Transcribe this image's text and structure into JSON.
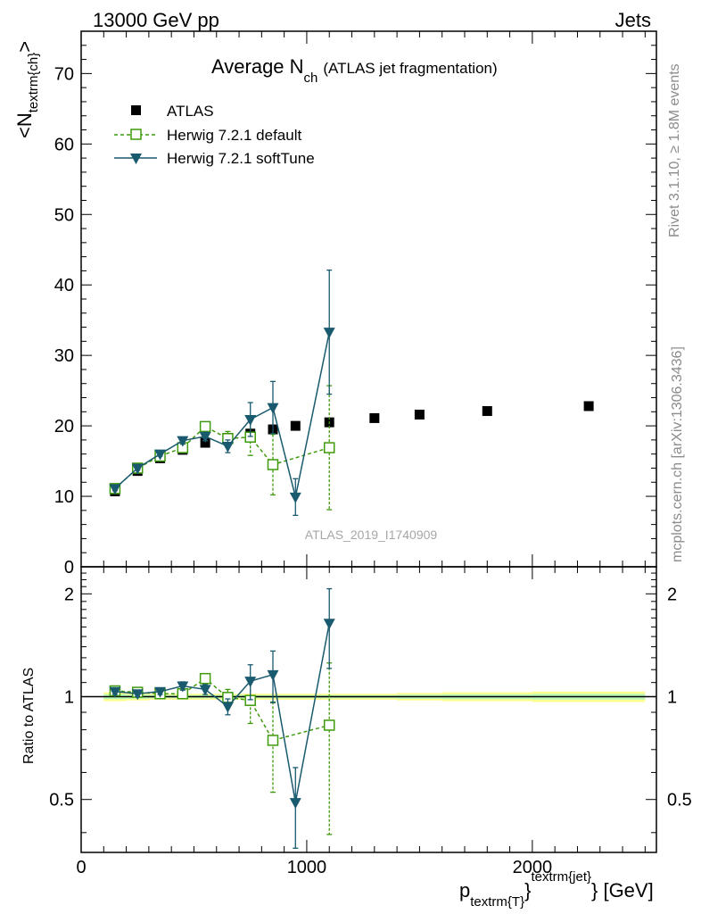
{
  "header": {
    "left": "13000 GeV pp",
    "right": "Jets"
  },
  "side": {
    "rivet": "Rivet 3.1.10, ≥ 1.8M events",
    "mcplots": "mcplots.cern.ch [arXiv:1306.3436]"
  },
  "plot_title": {
    "main": "Average N",
    "sub": "ch",
    "paren": "(ATLAS jet fragmentation)"
  },
  "analysis_id": "ATLAS_2019_I1740909",
  "axes": {
    "y_top_label_main": "<N",
    "y_top_label_sub": "textrm{ch}",
    "y_top_label_end": ">",
    "y_bottom_label": "Ratio to ATLAS",
    "x_label_p": "p",
    "x_label_sub": "textrm{T}",
    "x_label_brace": "}",
    "x_label_sup": "textrm{jet}",
    "x_label_end": "} [GeV]"
  },
  "legend": {
    "atlas": "ATLAS",
    "default": "Herwig 7.2.1 default",
    "softtune": "Herwig 7.2.1 softTune"
  },
  "colors": {
    "atlas": "#000000",
    "default": "#3f9a0b",
    "softtune": "#1a5a6e",
    "band_inner": "#b9f7b9",
    "band_outer": "#fdfd8c"
  },
  "chart_data": {
    "type": "scatter",
    "x_range": [
      0,
      2550
    ],
    "x_ticks": [
      0,
      1000,
      2000
    ],
    "x_tick_labels": [
      "0",
      "1000",
      "2000"
    ],
    "main": {
      "y_range": [
        0,
        76
      ],
      "y_ticks": [
        0,
        10,
        20,
        30,
        40,
        50,
        60,
        70
      ],
      "y_tick_labels": [
        "0",
        "10",
        "20",
        "30",
        "40",
        "50",
        "60",
        "70"
      ]
    },
    "ratio": {
      "y_range": [
        0.35,
        2.4
      ],
      "log": true,
      "y_ticks": [
        0.5,
        1,
        2
      ],
      "y_tick_labels": [
        "0.5",
        "1",
        "2"
      ]
    },
    "atlas": {
      "x": [
        150,
        250,
        350,
        450,
        550,
        650,
        750,
        850,
        950,
        1100,
        1300,
        1500,
        1800,
        2250
      ],
      "xlo": [
        100,
        200,
        300,
        400,
        500,
        600,
        700,
        800,
        900,
        1000,
        1200,
        1400,
        1600,
        2000
      ],
      "xhi": [
        200,
        300,
        400,
        500,
        600,
        700,
        800,
        900,
        1000,
        1200,
        1400,
        1600,
        2000,
        2500
      ],
      "y": [
        10.7,
        13.6,
        15.4,
        16.6,
        17.6,
        18.3,
        18.9,
        19.5,
        20.0,
        20.5,
        21.1,
        21.6,
        22.1,
        22.8
      ],
      "band": [
        0.03,
        0.025,
        0.02,
        0.02,
        0.02,
        0.02,
        0.02,
        0.02,
        0.02,
        0.02,
        0.02,
        0.025,
        0.03,
        0.035
      ]
    },
    "series": [
      {
        "name": "Herwig 7.2.1 default",
        "x": [
          150,
          250,
          350,
          450,
          550,
          650,
          750,
          850,
          1100
        ],
        "y": [
          11.1,
          14.0,
          15.7,
          16.9,
          19.9,
          18.2,
          18.4,
          14.5,
          16.9
        ],
        "err": [
          0.3,
          0.3,
          0.3,
          0.5,
          0.6,
          1.0,
          2.6,
          4.3,
          8.8
        ],
        "ratio": [
          1.04,
          1.03,
          1.02,
          1.02,
          1.13,
          0.995,
          0.975,
          0.745,
          0.825
        ],
        "ratio_err": [
          0.02,
          0.02,
          0.02,
          0.03,
          0.03,
          0.055,
          0.14,
          0.22,
          0.43
        ]
      },
      {
        "name": "Herwig 7.2.1 softTune",
        "x": [
          150,
          250,
          350,
          450,
          550,
          650,
          750,
          850,
          950,
          1100
        ],
        "y": [
          11.1,
          14.0,
          16.0,
          17.9,
          18.5,
          17.1,
          20.9,
          22.6,
          9.9,
          33.3
        ],
        "err": [
          0.3,
          0.3,
          0.3,
          0.5,
          0.6,
          0.9,
          2.4,
          3.7,
          2.6,
          8.8
        ],
        "ratio": [
          1.035,
          1.02,
          1.035,
          1.075,
          1.05,
          0.935,
          1.11,
          1.16,
          0.49,
          1.64
        ],
        "ratio_err": [
          0.02,
          0.02,
          0.02,
          0.03,
          0.035,
          0.05,
          0.13,
          0.2,
          0.13,
          0.43
        ]
      }
    ]
  }
}
